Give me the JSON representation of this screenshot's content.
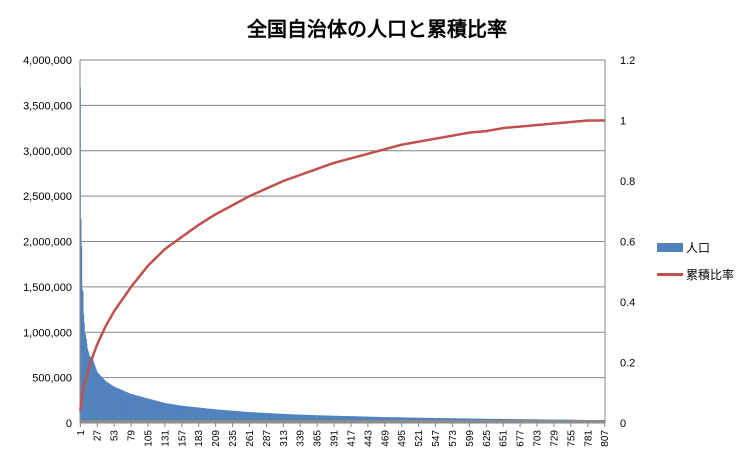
{
  "chart_data": {
    "type": "bar+line",
    "title": "全国自治体の人口と累積比率",
    "n": 807,
    "y_left": {
      "min": 0,
      "max": 4000000,
      "ticks": [
        "0",
        "500,000",
        "1,000,000",
        "1,500,000",
        "2,000,000",
        "2,500,000",
        "3,000,000",
        "3,500,000",
        "4,000,000"
      ]
    },
    "y_right": {
      "min": 0,
      "max": 1.2,
      "ticks": [
        "0",
        "0.2",
        "0.4",
        "0.6",
        "0.8",
        "1",
        "1.2"
      ]
    },
    "x_ticks": [
      "1",
      "27",
      "53",
      "79",
      "105",
      "131",
      "157",
      "183",
      "209",
      "235",
      "261",
      "287",
      "313",
      "339",
      "365",
      "391",
      "417",
      "443",
      "469",
      "495",
      "521",
      "547",
      "573",
      "599",
      "625",
      "651",
      "677",
      "703",
      "729",
      "755",
      "781",
      "807"
    ],
    "series": [
      {
        "name": "人口",
        "kind": "bar",
        "color": "#4f81bd",
        "sample_x": [
          1,
          2,
          3,
          4,
          5,
          6,
          7,
          8,
          9,
          10,
          12,
          15,
          20,
          27,
          40,
          53,
          79,
          105,
          131,
          157,
          183,
          209,
          235,
          261,
          287,
          313,
          339,
          365,
          391,
          417,
          443,
          469,
          495,
          521,
          547,
          573,
          599,
          625,
          651,
          677,
          703,
          729,
          755,
          781,
          807
        ],
        "sample_values": [
          3700000,
          2250000,
          1950000,
          1470000,
          1450000,
          1200000,
          1100000,
          1000000,
          970000,
          930000,
          820000,
          740000,
          700000,
          560000,
          460000,
          400000,
          320000,
          270000,
          220000,
          190000,
          170000,
          150000,
          135000,
          120000,
          110000,
          100000,
          92000,
          85000,
          80000,
          75000,
          70000,
          65000,
          62000,
          58000,
          55000,
          52000,
          49000,
          46000,
          44000,
          42000,
          40000,
          38000,
          36000,
          33000,
          30000
        ]
      },
      {
        "name": "累積比率",
        "kind": "line",
        "color": "#c0504d",
        "sample_x": [
          1,
          2,
          5,
          10,
          20,
          27,
          40,
          53,
          79,
          105,
          131,
          157,
          183,
          209,
          235,
          261,
          287,
          313,
          339,
          365,
          391,
          417,
          443,
          469,
          495,
          521,
          547,
          573,
          599,
          625,
          651,
          677,
          703,
          729,
          755,
          781,
          807
        ],
        "sample_values": [
          0.04,
          0.06,
          0.11,
          0.15,
          0.22,
          0.26,
          0.32,
          0.37,
          0.45,
          0.52,
          0.575,
          0.615,
          0.655,
          0.69,
          0.72,
          0.75,
          0.775,
          0.8,
          0.82,
          0.84,
          0.86,
          0.875,
          0.89,
          0.905,
          0.92,
          0.93,
          0.94,
          0.95,
          0.96,
          0.965,
          0.975,
          0.98,
          0.985,
          0.99,
          0.995,
          1.0,
          1.0
        ]
      }
    ],
    "legend_position": "right"
  }
}
